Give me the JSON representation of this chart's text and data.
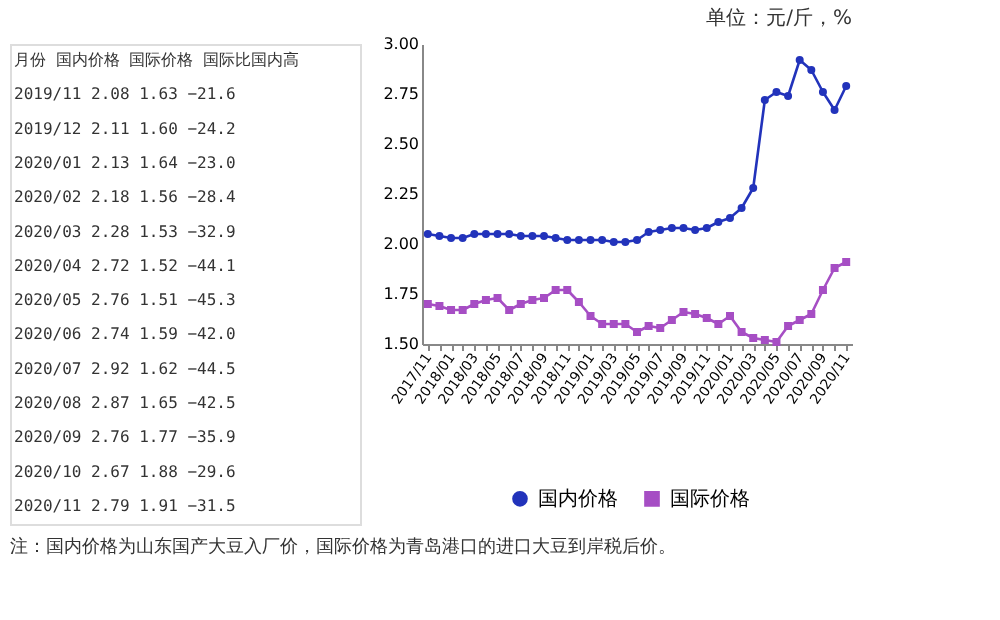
{
  "chart_data": {
    "type": "line",
    "categories": [
      "2017/11",
      null,
      "2018/01",
      null,
      "2018/03",
      null,
      "2018/05",
      null,
      "2018/07",
      null,
      "2018/09",
      null,
      "2018/11",
      null,
      "2019/01",
      null,
      "2019/03",
      null,
      "2019/05",
      null,
      "2019/07",
      null,
      "2019/09",
      null,
      "2019/11",
      null,
      "2020/01",
      null,
      "2020/03",
      null,
      "2020/05",
      null,
      "2020/07",
      null,
      "2020/09",
      null,
      "2020/11"
    ],
    "series": [
      {
        "name": "国内价格",
        "color": "#2233bb",
        "marker": "circle",
        "values": [
          2.05,
          2.04,
          2.03,
          2.03,
          2.05,
          2.05,
          2.05,
          2.05,
          2.04,
          2.04,
          2.04,
          2.03,
          2.02,
          2.02,
          2.02,
          2.02,
          2.01,
          2.01,
          2.02,
          2.06,
          2.07,
          2.08,
          2.08,
          2.07,
          2.08,
          2.11,
          2.13,
          2.18,
          2.28,
          2.72,
          2.76,
          2.74,
          2.92,
          2.87,
          2.76,
          2.67,
          2.79
        ]
      },
      {
        "name": "国际价格",
        "color": "#a64ec4",
        "marker": "square",
        "values": [
          1.7,
          1.69,
          1.67,
          1.67,
          1.7,
          1.72,
          1.73,
          1.67,
          1.7,
          1.72,
          1.73,
          1.77,
          1.77,
          1.71,
          1.64,
          1.6,
          1.6,
          1.6,
          1.56,
          1.59,
          1.58,
          1.62,
          1.66,
          1.65,
          1.63,
          1.6,
          1.64,
          1.56,
          1.53,
          1.52,
          1.51,
          1.59,
          1.62,
          1.65,
          1.77,
          1.88,
          1.91
        ]
      }
    ],
    "ylim": [
      1.5,
      3.0
    ],
    "yticks": [
      {
        "value": 1.5,
        "label": "1.50"
      },
      1.75,
      {
        "value": 2.0,
        "label": "2.00"
      },
      2.25,
      {
        "value": 2.5,
        "label": "2.50"
      },
      2.75,
      {
        "value": 3.0,
        "label": "3.00"
      }
    ],
    "legend": "bottom",
    "grid": false,
    "line_style": "solid",
    "annotations": [
      "单位：元/斤，%",
      "月份 国内价格 国际价格 国际比国内高",
      "2019/11 2.08 1.63 −21.6",
      "2019/12 2.11 1.60 −24.2",
      "2020/01 2.13 1.64 −23.0",
      "2020/02 2.18 1.56 −28.4",
      "2020/03 2.28 1.53 −32.9",
      "2020/04 2.72 1.52 −44.1",
      "2020/05 2.76 1.51 −45.3",
      "2020/06 2.74 1.59 −42.0",
      "2020/07 2.92 1.62 −44.5",
      "2020/08 2.87 1.65 −42.5",
      "2020/09 2.76 1.77 −35.9",
      "2020/10 2.67 1.88 −29.6",
      "2020/11 2.79 1.91 −31.5",
      "注：国内价格为山东国产大豆入厂价，国际价格为青岛港口的进口大豆到岸税后价。"
    ]
  }
}
